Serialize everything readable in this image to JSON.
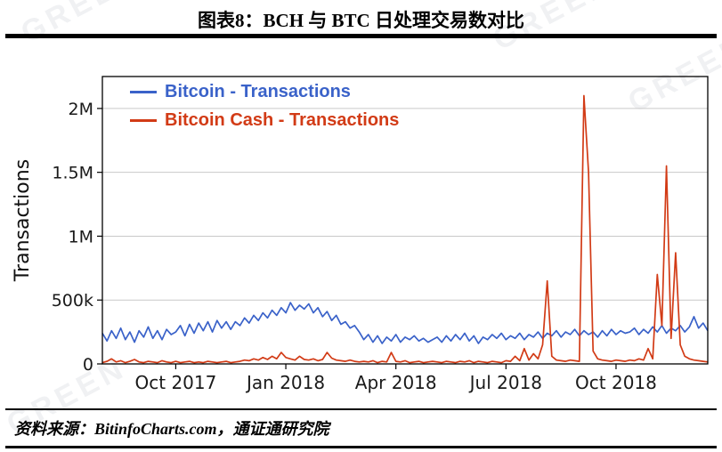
{
  "header": {
    "title": "图表8：BCH 与 BTC 日处理交易数对比"
  },
  "watermark": {
    "text": "GREEN"
  },
  "footer": {
    "source": "资料来源：BitinfoCharts.com，通证通研究院"
  },
  "chart_data": {
    "type": "line",
    "title": "图表8：BCH 与 BTC 日处理交易数对比",
    "xlabel": "",
    "ylabel": "Transactions",
    "grid": "horizontal",
    "legend_position": "top-left",
    "x_unit": "months since Aug 2017 (series points evenly spaced over x_range)",
    "value_unit": "thousands of transactions per day",
    "x_range": [
      0,
      16.5
    ],
    "y_max_thousands": 2250,
    "x_ticks": [
      {
        "value": 2,
        "label": "Oct 2017"
      },
      {
        "value": 5,
        "label": "Jan 2018"
      },
      {
        "value": 8,
        "label": "Apr 2018"
      },
      {
        "value": 11,
        "label": "Jul 2018"
      },
      {
        "value": 14,
        "label": "Oct 2018"
      }
    ],
    "y_ticks": [
      {
        "value": 0,
        "label": "0"
      },
      {
        "value": 500,
        "label": "500k"
      },
      {
        "value": 1000,
        "label": "1M"
      },
      {
        "value": 1500,
        "label": "1.5M"
      },
      {
        "value": 2000,
        "label": "2M"
      }
    ],
    "series": [
      {
        "name": "Bitcoin - Transactions",
        "color": "#3a62c9",
        "values": [
          240,
          180,
          260,
          200,
          280,
          190,
          250,
          170,
          260,
          210,
          290,
          200,
          260,
          190,
          270,
          230,
          250,
          300,
          220,
          310,
          240,
          320,
          260,
          330,
          250,
          340,
          280,
          330,
          270,
          330,
          300,
          360,
          320,
          380,
          340,
          400,
          360,
          420,
          380,
          440,
          400,
          480,
          420,
          460,
          430,
          470,
          400,
          440,
          370,
          410,
          340,
          380,
          310,
          330,
          280,
          300,
          250,
          190,
          230,
          170,
          220,
          160,
          210,
          180,
          230,
          170,
          210,
          190,
          220,
          180,
          200,
          170,
          190,
          210,
          170,
          220,
          180,
          230,
          190,
          240,
          180,
          220,
          160,
          210,
          190,
          230,
          200,
          240,
          190,
          220,
          200,
          240,
          190,
          230,
          210,
          250,
          200,
          240,
          220,
          260,
          210,
          250,
          230,
          270,
          220,
          260,
          230,
          250,
          210,
          260,
          220,
          270,
          230,
          260,
          240,
          250,
          280,
          230,
          270,
          240,
          290,
          250,
          300,
          240,
          280,
          260,
          300,
          250,
          290,
          370,
          280,
          320,
          260
        ]
      },
      {
        "name": "Bitcoin Cash - Transactions",
        "color": "#d23b16",
        "values": [
          10,
          20,
          40,
          15,
          25,
          10,
          20,
          35,
          15,
          10,
          20,
          15,
          10,
          25,
          15,
          10,
          20,
          10,
          15,
          20,
          10,
          15,
          10,
          20,
          15,
          10,
          15,
          20,
          10,
          15,
          20,
          30,
          25,
          40,
          30,
          50,
          35,
          60,
          40,
          90,
          50,
          40,
          30,
          60,
          35,
          30,
          40,
          25,
          35,
          90,
          45,
          30,
          25,
          20,
          30,
          20,
          15,
          20,
          15,
          25,
          10,
          20,
          15,
          90,
          20,
          15,
          25,
          10,
          15,
          20,
          10,
          15,
          20,
          15,
          10,
          20,
          15,
          10,
          20,
          15,
          25,
          10,
          20,
          15,
          10,
          20,
          15,
          10,
          25,
          20,
          60,
          25,
          120,
          30,
          80,
          40,
          150,
          650,
          60,
          30,
          25,
          20,
          30,
          25,
          20,
          2100,
          1500,
          100,
          40,
          30,
          25,
          20,
          30,
          25,
          20,
          30,
          25,
          40,
          30,
          120,
          40,
          700,
          300,
          1550,
          200,
          870,
          150,
          60,
          40,
          30,
          25,
          20,
          15
        ]
      }
    ]
  }
}
